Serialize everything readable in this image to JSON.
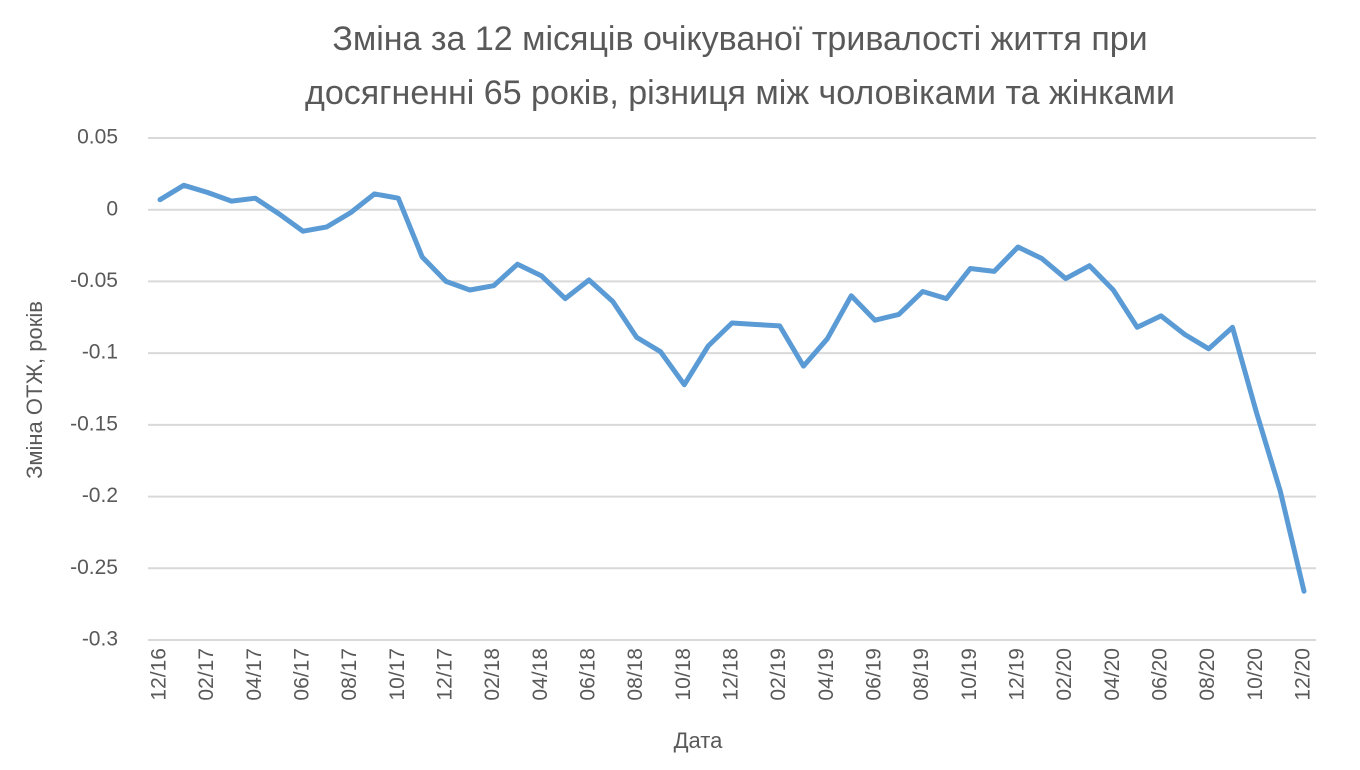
{
  "chart_data": {
    "type": "line",
    "title": [
      "Зміна за 12 місяців очікуваної тривалості життя при",
      "досягненні 65 років, різниця між чоловіками та жінками"
    ],
    "x_label": "Дата",
    "y_label": "Зміна ОТЖ, років",
    "categories": [
      "12/16",
      null,
      "02/17",
      null,
      "04/17",
      null,
      "06/17",
      null,
      "08/17",
      null,
      "10/17",
      null,
      "12/17",
      null,
      "02/18",
      null,
      "04/18",
      null,
      "06/18",
      null,
      "08/18",
      null,
      "10/18",
      null,
      "12/18",
      null,
      "02/19",
      null,
      "04/19",
      null,
      "06/19",
      null,
      "08/19",
      null,
      "10/19",
      null,
      "12/19",
      null,
      "02/20",
      null,
      "04/20",
      null,
      "06/20",
      null,
      "08/20",
      null,
      "10/20",
      null,
      "12/20"
    ],
    "values": [
      0.007,
      0.017,
      0.012,
      0.006,
      0.008,
      -0.003,
      -0.015,
      -0.012,
      -0.002,
      0.011,
      0.008,
      -0.033,
      -0.05,
      -0.056,
      -0.053,
      -0.038,
      -0.046,
      -0.062,
      -0.049,
      -0.064,
      -0.089,
      -0.099,
      -0.122,
      -0.095,
      -0.079,
      -0.08,
      -0.081,
      -0.109,
      -0.09,
      -0.06,
      -0.077,
      -0.073,
      -0.057,
      -0.062,
      -0.041,
      -0.043,
      -0.026,
      -0.034,
      -0.048,
      -0.039,
      -0.056,
      -0.082,
      -0.074,
      -0.087,
      -0.097,
      -0.082,
      -0.141,
      -0.196,
      -0.266
    ],
    "color": "#5b9bd5",
    "ylim": [
      -0.3,
      0.05
    ],
    "yticks": [
      0.05,
      0,
      -0.05,
      -0.1,
      -0.15,
      -0.2,
      -0.25,
      -0.3
    ],
    "grid": true
  }
}
